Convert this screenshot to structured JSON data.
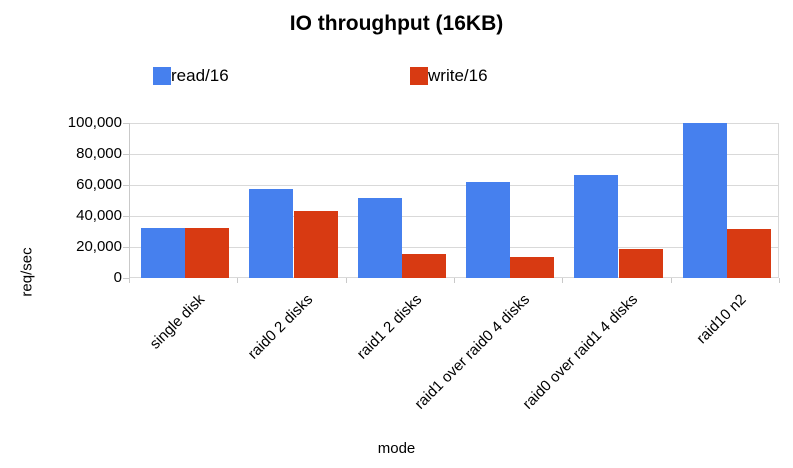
{
  "chart_data": {
    "type": "bar",
    "title": "IO throughput (16KB)",
    "xlabel": "mode",
    "ylabel": "req/sec",
    "categories": [
      "single disk",
      "raid0 2 disks",
      "raid1 2 disks",
      "raid1 over raid0 4 disks",
      "raid0 over raid1 4 disks",
      "raid10 n2"
    ],
    "series": [
      {
        "name": "read/16",
        "color": "#4680ee",
        "values": [
          32000,
          57500,
          51500,
          62000,
          66500,
          100000
        ]
      },
      {
        "name": "write/16",
        "color": "#d83a12",
        "values": [
          32500,
          43400,
          15700,
          13800,
          18500,
          31500
        ]
      }
    ],
    "ylim": [
      0,
      100000
    ],
    "yticks": [
      0,
      20000,
      40000,
      60000,
      80000,
      100000
    ],
    "ytick_labels": [
      "0",
      "20,000",
      "40,000",
      "60,000",
      "80,000",
      "100,000"
    ],
    "grid": true,
    "legend_position": "top"
  },
  "colors": {
    "background": "#ffffff",
    "gridline": "#d9d9d9",
    "axis": "#c9c9c9",
    "text": "#000000"
  }
}
